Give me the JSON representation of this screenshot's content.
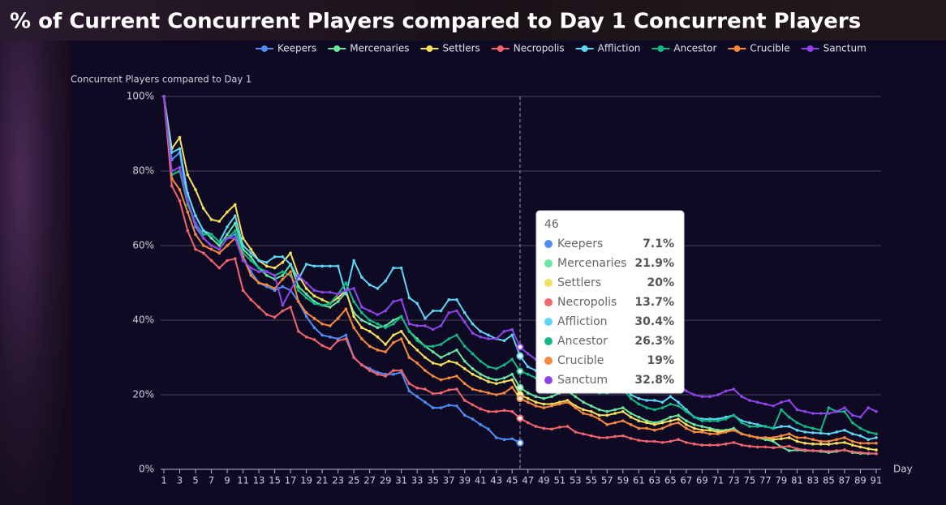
{
  "chart_data": {
    "type": "line",
    "title": "% of Current Concurrent Players compared to Day 1 Concurrent Players",
    "y_label": "Concurrent Players compared to Day 1",
    "x_label": "Day",
    "x": [
      1,
      2,
      3,
      4,
      5,
      6,
      7,
      8,
      9,
      10,
      11,
      12,
      13,
      14,
      15,
      16,
      17,
      18,
      19,
      20,
      21,
      22,
      23,
      24,
      25,
      26,
      27,
      28,
      29,
      30,
      31,
      32,
      33,
      34,
      35,
      36,
      37,
      38,
      39,
      40,
      41,
      42,
      43,
      44,
      45,
      46,
      47,
      48,
      49,
      50,
      51,
      52,
      53,
      54,
      55,
      56,
      57,
      58,
      59,
      60,
      61,
      62,
      63,
      64,
      65,
      66,
      67,
      68,
      69,
      70,
      71,
      72,
      73,
      74,
      75,
      76,
      77,
      78,
      79,
      80,
      81,
      82,
      83,
      84,
      85,
      86,
      87,
      88,
      89,
      90,
      91
    ],
    "xlim": [
      1,
      91
    ],
    "xticks": [
      1,
      3,
      5,
      7,
      9,
      11,
      13,
      15,
      17,
      19,
      21,
      23,
      25,
      27,
      29,
      31,
      33,
      35,
      37,
      39,
      41,
      43,
      45,
      47,
      49,
      51,
      53,
      55,
      57,
      59,
      61,
      63,
      65,
      67,
      69,
      71,
      73,
      75,
      77,
      79,
      81,
      83,
      85,
      87,
      89,
      91
    ],
    "ylim": [
      0,
      100
    ],
    "yticks": [
      {
        "value": 0,
        "label": "0%"
      },
      {
        "value": 20,
        "label": "20%"
      },
      {
        "value": 40,
        "label": "40%"
      },
      {
        "value": 60,
        "label": "60%"
      },
      {
        "value": 80,
        "label": "80%"
      },
      {
        "value": 100,
        "label": "100%"
      }
    ],
    "grid": true,
    "legend": "top",
    "series": [
      {
        "name": "Keepers",
        "color": "#4f8df5",
        "values": [
          100,
          83,
          85,
          72,
          65,
          62,
          60,
          59,
          62,
          63,
          57,
          53,
          50,
          49,
          48,
          49,
          48,
          45,
          41,
          38,
          36,
          35.5,
          35,
          36,
          30,
          28,
          27,
          26,
          25.5,
          25.5,
          26,
          21,
          19.5,
          18,
          16.5,
          16.5,
          17.2,
          17,
          14.5,
          13.5,
          12,
          10.8,
          8.5,
          8,
          8.2,
          7.1,
          null,
          null,
          null,
          null,
          null,
          null,
          null,
          null,
          null,
          null,
          null,
          null,
          null,
          null,
          null,
          null,
          null,
          null,
          null,
          null,
          null,
          null,
          null,
          null,
          null,
          null,
          null,
          null,
          null,
          null,
          null,
          null,
          null,
          null,
          null,
          null,
          null,
          null,
          null,
          null,
          null,
          null,
          null,
          null,
          null
        ]
      },
      {
        "name": "Mercenaries",
        "color": "#6be6a0",
        "values": [
          100,
          79,
          80,
          74,
          68,
          64,
          62,
          60,
          63,
          66,
          59,
          57,
          54,
          52,
          51,
          52,
          55,
          49,
          47,
          45,
          44,
          43.5,
          45,
          47.5,
          42,
          40,
          39,
          38,
          38.5,
          40,
          41,
          37,
          35,
          33,
          31.5,
          30,
          31,
          32,
          29,
          27,
          25.5,
          24.5,
          24,
          24.5,
          25.5,
          21.9,
          20.5,
          19.5,
          19,
          19.5,
          20.5,
          21,
          19.5,
          18,
          17,
          16,
          15.5,
          16,
          16.5,
          15,
          14,
          13,
          12.5,
          13,
          14,
          14.5,
          13,
          12,
          11.5,
          11,
          10.5,
          10.5,
          11,
          9.5,
          9,
          8.5,
          8,
          7.5,
          6,
          5,
          5.2,
          5,
          5,
          4.8,
          4.5,
          4.8,
          5.2,
          4.5,
          4.3,
          4.2,
          4.2
        ]
      },
      {
        "name": "Settlers",
        "color": "#f6e05e",
        "values": [
          100,
          86,
          89,
          79,
          75,
          70,
          67,
          66.5,
          69,
          71,
          62,
          59,
          56,
          54.5,
          54,
          55.5,
          58,
          52,
          48.5,
          46.5,
          45.5,
          44.5,
          46,
          48,
          41,
          38,
          37,
          35.5,
          33.5,
          36,
          37,
          34,
          32,
          30,
          28.5,
          28,
          29,
          28.5,
          27,
          25.5,
          24.5,
          23.5,
          23,
          23.5,
          24,
          20,
          19,
          18,
          17.5,
          17.5,
          18,
          18.5,
          17,
          16,
          15.5,
          14.5,
          14.5,
          15,
          15.5,
          14,
          13,
          12.5,
          12,
          12.5,
          13,
          13.5,
          12,
          11,
          10.5,
          10.5,
          10,
          10.2,
          10.5,
          9.5,
          9,
          8.5,
          8.5,
          8,
          8.2,
          8.5,
          7.5,
          7,
          6.8,
          6.8,
          6.7,
          7,
          7.2,
          6.5,
          6,
          5.5,
          5.2
        ]
      },
      {
        "name": "Necropolis",
        "color": "#f2646e",
        "values": [
          100,
          76,
          72,
          64,
          59,
          58,
          56,
          54,
          56,
          56.5,
          48,
          45.5,
          43.5,
          41.5,
          40.8,
          42.5,
          43.5,
          37,
          35.5,
          34.8,
          33.2,
          32.3,
          34.5,
          35,
          30,
          28,
          26.5,
          25.5,
          25,
          26.5,
          26.5,
          23,
          21.8,
          21.5,
          20.3,
          20.5,
          21.3,
          21.5,
          18.5,
          17.3,
          16.2,
          15.5,
          15.5,
          15.8,
          15.5,
          13.7,
          12.5,
          11.5,
          11,
          10.8,
          11.3,
          11.5,
          10,
          9.5,
          9,
          8.5,
          8.5,
          8.8,
          9,
          8.3,
          7.8,
          7.5,
          7.5,
          7.2,
          7.5,
          8,
          7.2,
          6.8,
          6.5,
          6.5,
          6.5,
          6.8,
          7.2,
          6.5,
          6.2,
          6,
          6,
          5.8,
          6,
          6.2,
          5.5,
          5.2,
          5,
          5,
          4.8,
          5,
          5.2,
          4.7,
          4.5,
          4.3,
          4.2
        ]
      },
      {
        "name": "Affliction",
        "color": "#5dd6f5",
        "values": [
          100,
          85,
          86,
          74,
          68,
          64,
          63,
          61,
          65,
          68,
          60,
          58,
          56,
          55.5,
          57,
          57,
          55,
          51,
          55,
          54.5,
          54.5,
          54.5,
          54.5,
          47,
          56,
          51.5,
          49.5,
          48.5,
          50.5,
          54,
          54,
          46,
          44.5,
          40.5,
          42.5,
          42.5,
          45.5,
          45.5,
          42,
          39,
          37,
          36,
          35,
          34.5,
          36,
          30.4,
          27.5,
          26.5,
          25.5,
          25.5,
          26.5,
          27.5,
          25,
          23,
          22,
          21,
          21.5,
          22,
          22.5,
          20,
          19,
          18.5,
          18.5,
          18,
          19.5,
          18,
          16,
          14,
          13.5,
          13.5,
          13.5,
          14,
          14.5,
          13,
          12.5,
          12,
          11.5,
          11,
          11.5,
          11.5,
          10.5,
          10,
          9.8,
          9.7,
          9.5,
          10,
          10.5,
          9.5,
          9,
          8,
          8.5
        ]
      },
      {
        "name": "Ancestor",
        "color": "#12b886",
        "values": [
          100,
          79,
          80,
          71,
          66,
          63,
          63,
          61,
          62,
          64,
          58,
          56,
          54,
          53,
          52,
          53,
          52,
          48,
          46,
          44.5,
          44,
          44.5,
          47,
          50,
          45,
          42,
          40,
          39,
          38,
          39,
          41,
          37,
          34.5,
          33,
          33,
          33.5,
          35,
          36,
          33,
          31,
          29,
          27.5,
          27,
          28,
          29.5,
          26.3,
          25.5,
          24.5,
          24,
          24.5,
          25.5,
          26,
          24,
          22.5,
          21.5,
          20.5,
          20.5,
          21,
          21.5,
          19,
          17.5,
          16.5,
          16,
          16.5,
          17.5,
          17,
          15.5,
          14,
          13,
          13,
          13,
          13.5,
          14.5,
          12.5,
          11.5,
          11.5,
          11.5,
          11,
          16,
          14,
          12.5,
          11.5,
          11,
          10.5,
          16.5,
          15.5,
          15.5,
          12.5,
          11,
          10,
          9.5
        ]
      },
      {
        "name": "Crucible",
        "color": "#f7883e",
        "values": [
          100,
          78,
          75,
          69,
          63,
          60,
          59,
          58,
          60,
          62,
          57,
          52,
          50,
          49.5,
          48.5,
          51,
          53,
          45,
          42,
          40.5,
          39,
          38.5,
          40.5,
          43,
          38,
          35,
          33,
          32,
          31.5,
          34,
          35,
          30,
          28.5,
          26.5,
          25,
          24,
          24.5,
          25,
          23,
          21.5,
          21,
          20.5,
          20,
          20.5,
          22,
          19,
          18,
          17,
          16.5,
          17,
          17.5,
          18,
          16.5,
          15,
          14.5,
          13.5,
          12,
          12.5,
          13,
          12,
          11,
          11,
          10.5,
          11,
          12,
          12.5,
          11,
          10,
          10,
          9.5,
          9.5,
          10,
          10.5,
          9.5,
          9,
          8.5,
          8.5,
          8.5,
          9,
          9.5,
          8.5,
          8.5,
          8,
          7.5,
          7.5,
          8,
          8.5,
          7.5,
          7,
          7,
          7
        ]
      },
      {
        "name": "Sanctum",
        "color": "#8e44e8",
        "values": [
          100,
          80,
          81,
          72,
          66,
          62,
          60,
          59,
          62,
          62,
          56,
          54,
          53,
          53,
          52,
          44,
          48,
          52,
          50,
          48,
          47.5,
          47.5,
          47,
          48,
          48.5,
          43.5,
          42.5,
          41.5,
          42.5,
          45,
          45.5,
          39,
          38.5,
          38.5,
          37.5,
          38.5,
          42,
          42.5,
          39.5,
          36.5,
          35.5,
          35,
          35,
          37,
          37.5,
          32.8,
          31,
          29.5,
          28.5,
          28.5,
          29,
          29.5,
          27.5,
          26,
          25.5,
          24.5,
          24,
          24.5,
          25,
          23,
          22,
          22,
          21.5,
          21,
          22.5,
          23,
          21,
          20,
          19.5,
          19.5,
          20,
          21,
          21.5,
          19.5,
          18.5,
          18,
          17.5,
          17,
          18,
          18.5,
          16,
          15.5,
          15,
          15,
          15,
          15.5,
          16.5,
          14.5,
          14,
          16.5,
          15.5
        ]
      }
    ],
    "tooltip": {
      "index": 45,
      "labels": [
        "7.1%",
        "21.9%",
        "20%",
        "13.7%",
        "30.4%",
        "26.3%",
        "19%",
        "32.8%"
      ]
    }
  }
}
